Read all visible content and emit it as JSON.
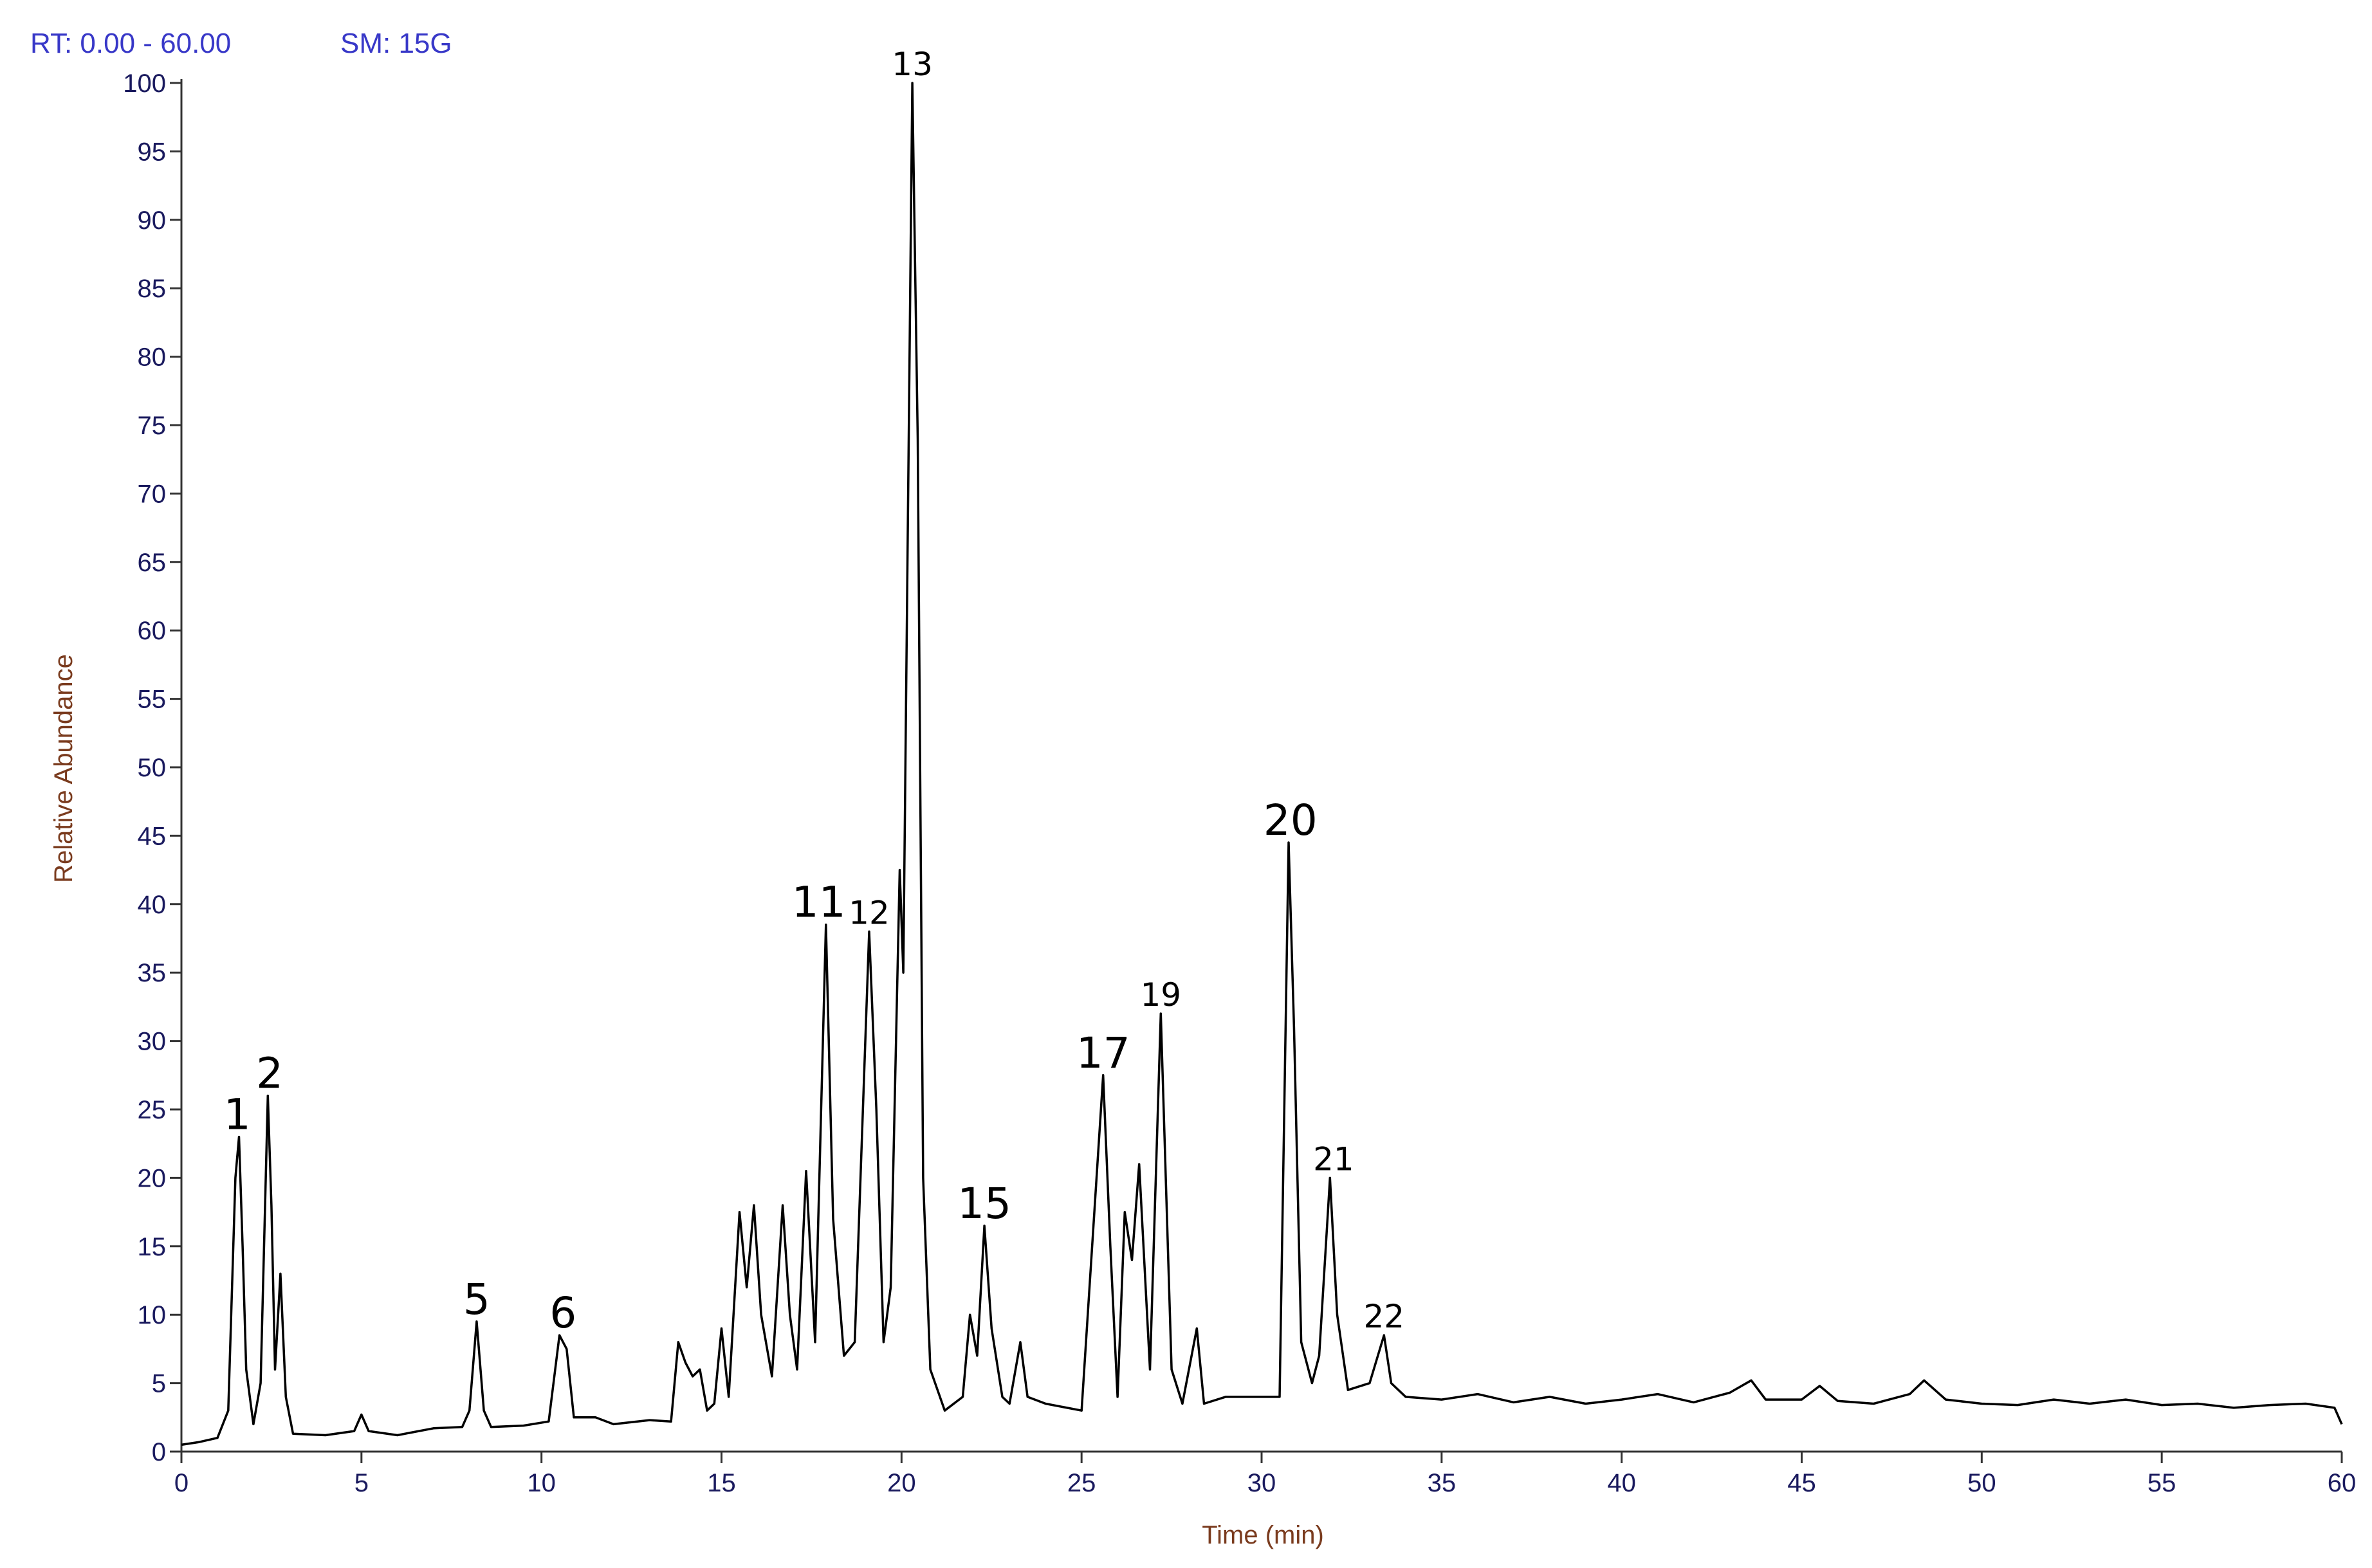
{
  "chart_data": {
    "type": "line",
    "rt_label": "RT: 0.00 - 60.00",
    "sm_label": "SM: 15G",
    "xlabel": "Time (min)",
    "ylabel": "Relative Abundance",
    "color": "#000000",
    "xlim": [
      0,
      60
    ],
    "ylim": [
      0,
      100
    ],
    "xticks": [
      0,
      5,
      10,
      15,
      20,
      25,
      30,
      35,
      40,
      45,
      50,
      55,
      60
    ],
    "yticks": [
      0,
      5,
      10,
      15,
      20,
      25,
      30,
      35,
      40,
      45,
      50,
      55,
      60,
      65,
      70,
      75,
      80,
      85,
      90,
      95,
      100
    ],
    "x": [
      0,
      0.5,
      1.0,
      1.3,
      1.5,
      1.6,
      1.7,
      1.8,
      2.0,
      2.2,
      2.4,
      2.5,
      2.6,
      2.75,
      2.9,
      3.1,
      4,
      4.8,
      5.0,
      5.2,
      6,
      7,
      7.8,
      8.0,
      8.2,
      8.4,
      8.6,
      9.5,
      10.2,
      10.5,
      10.7,
      10.9,
      11.5,
      12,
      13,
      13.6,
      13.8,
      14.0,
      14.2,
      14.4,
      14.6,
      14.8,
      15.0,
      15.2,
      15.5,
      15.7,
      15.9,
      16.1,
      16.4,
      16.7,
      16.9,
      17.1,
      17.35,
      17.6,
      17.9,
      18.1,
      18.4,
      18.7,
      19.1,
      19.3,
      19.5,
      19.7,
      19.95,
      20.05,
      20.3,
      20.45,
      20.6,
      20.8,
      21.2,
      21.7,
      21.9,
      22.1,
      22.3,
      22.5,
      22.8,
      23.0,
      23.3,
      23.5,
      24,
      25,
      25.6,
      25.8,
      26.0,
      26.2,
      26.4,
      26.6,
      26.9,
      27.2,
      27.5,
      27.8,
      28.2,
      28.4,
      29,
      30,
      30.5,
      30.75,
      30.9,
      31.1,
      31.4,
      31.6,
      31.9,
      32.1,
      32.4,
      33.0,
      33.4,
      33.6,
      34,
      35,
      36,
      37,
      38,
      39,
      40,
      41,
      42,
      43,
      43.6,
      44,
      45,
      45.5,
      46,
      47,
      48,
      48.4,
      49,
      50,
      51,
      52,
      53,
      54,
      55,
      56,
      57,
      58,
      59,
      59.8,
      60
    ],
    "values": [
      0.5,
      0.7,
      1,
      3,
      20,
      23,
      15,
      6,
      2,
      5,
      26,
      18,
      6,
      13,
      4,
      1.3,
      1.2,
      1.5,
      2.7,
      1.5,
      1.2,
      1.7,
      1.8,
      3,
      9.5,
      3,
      1.8,
      1.9,
      2.2,
      8.5,
      7.5,
      2.5,
      2.5,
      2,
      2.3,
      2.2,
      8,
      6.5,
      5.5,
      6,
      3,
      3.5,
      9,
      4,
      17.5,
      12,
      18,
      10,
      5.5,
      18,
      10,
      6,
      20.5,
      8,
      38.5,
      17,
      7,
      8,
      38,
      25,
      8,
      12,
      42.5,
      35,
      100,
      74,
      20,
      6,
      3,
      4,
      10,
      7,
      16.5,
      9,
      4,
      3.5,
      8,
      4,
      3.5,
      3,
      27.5,
      15,
      4,
      17.5,
      14,
      21,
      6,
      32,
      6,
      3.5,
      9,
      3.5,
      4,
      4,
      4,
      44.5,
      31,
      8,
      5,
      7,
      20,
      10,
      4.5,
      5,
      8.5,
      5,
      4,
      3.8,
      4.2,
      3.6,
      4,
      3.5,
      3.8,
      4.2,
      3.6,
      4.3,
      5.2,
      3.8,
      3.8,
      4.8,
      3.7,
      3.5,
      4.2,
      5.2,
      3.8,
      3.5,
      3.4,
      3.8,
      3.5,
      3.8,
      3.4,
      3.5,
      3.2,
      3.4,
      3.5,
      3.2,
      2
    ],
    "annotations": [
      {
        "text": "1",
        "x": 1.55,
        "y": 23
      },
      {
        "text": "2",
        "x": 2.45,
        "y": 26
      },
      {
        "text": "5",
        "x": 8.2,
        "y": 9.5
      },
      {
        "text": "6",
        "x": 10.6,
        "y": 8.5
      },
      {
        "text": "11",
        "x": 17.7,
        "y": 38.5
      },
      {
        "text": "12",
        "x": 19.1,
        "y": 38
      },
      {
        "text": "13",
        "x": 20.3,
        "y": 100
      },
      {
        "text": "15",
        "x": 22.3,
        "y": 16.5
      },
      {
        "text": "17",
        "x": 25.6,
        "y": 27.5
      },
      {
        "text": "19",
        "x": 27.2,
        "y": 32
      },
      {
        "text": "20",
        "x": 30.8,
        "y": 44.5
      },
      {
        "text": "21",
        "x": 32.0,
        "y": 20
      },
      {
        "text": "22",
        "x": 33.4,
        "y": 8.5
      }
    ]
  }
}
